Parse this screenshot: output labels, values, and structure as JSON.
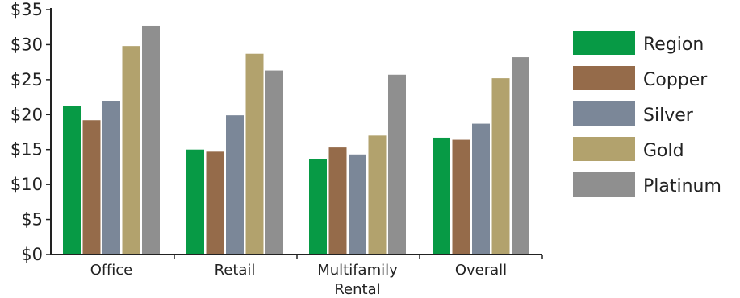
{
  "chart_data": {
    "type": "bar",
    "title": "",
    "xlabel": "",
    "ylabel": "",
    "ylim": [
      0,
      35
    ],
    "ytick_step": 5,
    "ytick_prefix": "$",
    "grid": false,
    "legend_position": "right",
    "categories": [
      [
        "Office"
      ],
      [
        "Retail"
      ],
      [
        "Multifamily",
        "Rental"
      ],
      [
        "Overall"
      ]
    ],
    "series": [
      {
        "name": "Region",
        "color": "#079A45",
        "values": [
          21.2,
          15.0,
          13.7,
          16.7
        ]
      },
      {
        "name": "Copper",
        "color": "#956B4A",
        "values": [
          19.2,
          14.7,
          15.3,
          16.4
        ]
      },
      {
        "name": "Silver",
        "color": "#7B8798",
        "values": [
          21.9,
          19.9,
          14.3,
          18.7
        ]
      },
      {
        "name": "Gold",
        "color": "#B2A26D",
        "values": [
          29.8,
          28.7,
          17.0,
          25.2
        ]
      },
      {
        "name": "Platinum",
        "color": "#8F8F8F",
        "values": [
          32.7,
          26.3,
          25.7,
          28.2
        ]
      }
    ]
  }
}
